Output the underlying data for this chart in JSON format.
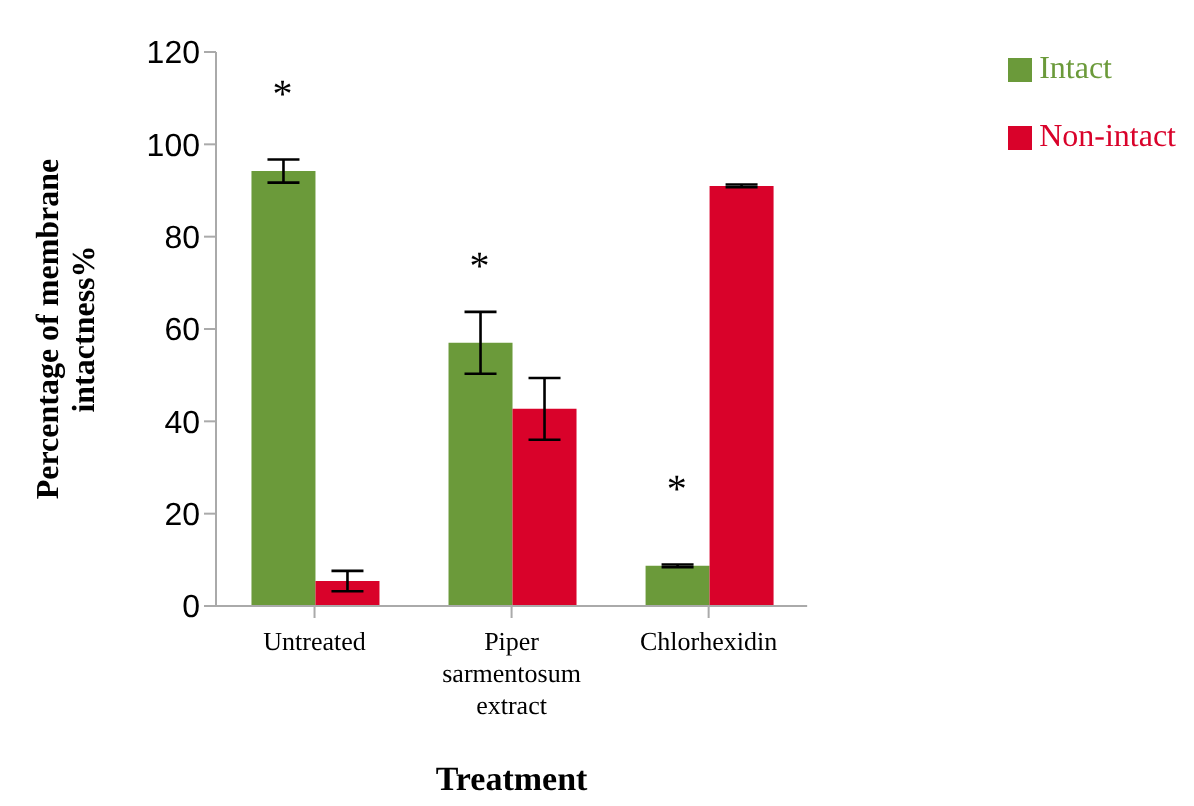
{
  "chart_data": {
    "type": "bar",
    "xlabel": "Treatment",
    "ylabel": "Percentage of membrane intactness%",
    "categories": [
      "Untreated",
      "Piper sarmentosum extract",
      "Chlorhexidin"
    ],
    "series": [
      {
        "name": "Intact",
        "color": "#6b9a3a",
        "values": [
          94.2,
          57,
          8.7
        ],
        "errors": [
          2.5,
          6.7,
          0.3
        ]
      },
      {
        "name": "Non-intact",
        "color": "#d9022a",
        "values": [
          5.4,
          42.7,
          91
        ],
        "errors": [
          2.2,
          6.7,
          0.3
        ]
      }
    ],
    "ylim": [
      0,
      120
    ],
    "yticks": [
      0,
      20,
      40,
      60,
      80,
      100,
      120
    ],
    "grid": false,
    "legend": "top right",
    "annotations": [
      {
        "text": "*",
        "x": "Untreated",
        "y": 94.2
      },
      {
        "text": "*",
        "x": "Piper sarmentosum extract",
        "y": 57
      },
      {
        "text": "*",
        "x": "Chlorhexidin",
        "y": 8.7
      }
    ]
  }
}
